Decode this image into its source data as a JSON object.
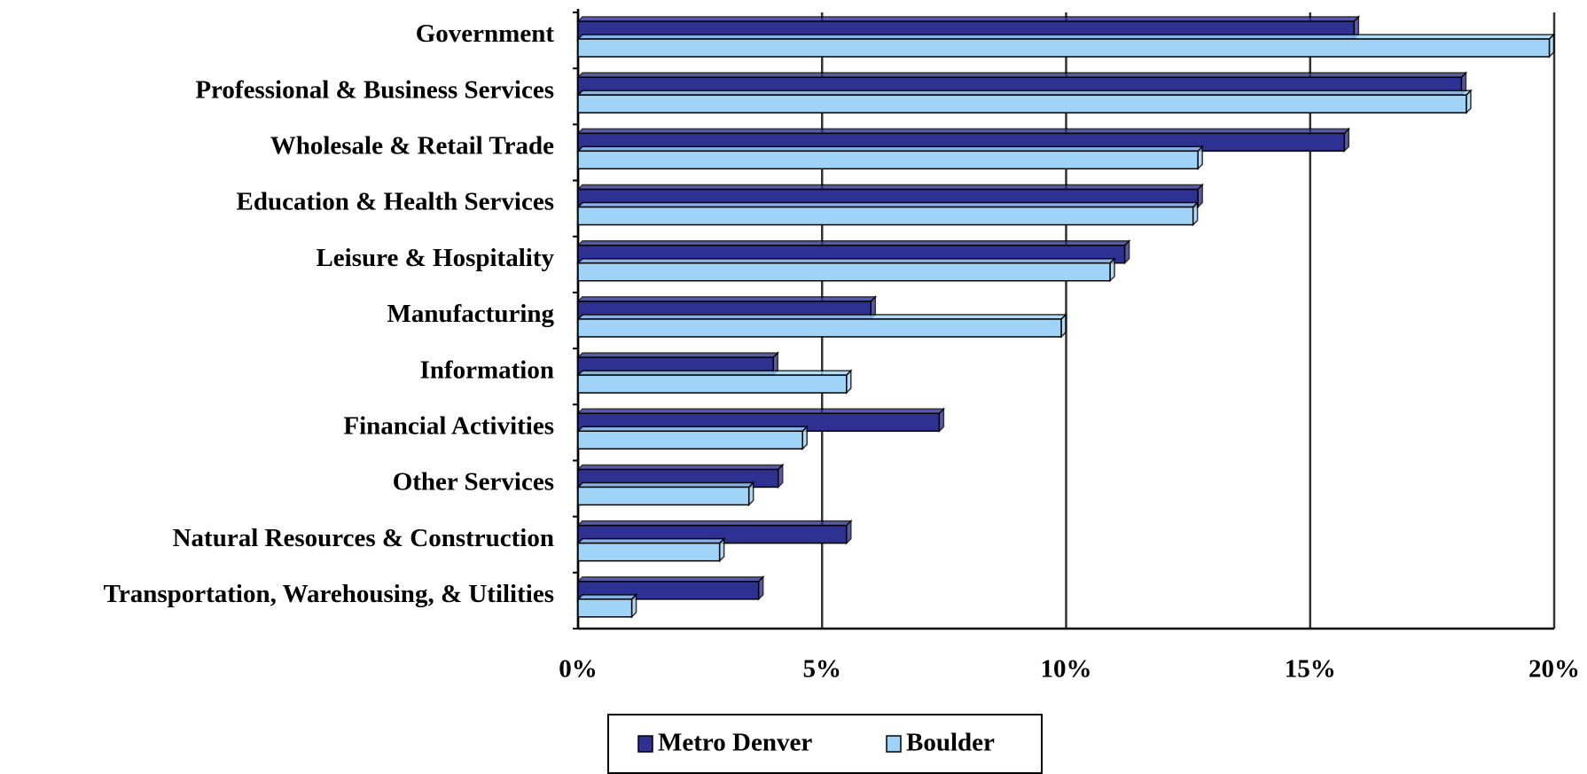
{
  "chart_data": {
    "type": "bar",
    "orientation": "horizontal",
    "categories": [
      "Government",
      "Professional & Business Services",
      "Wholesale & Retail Trade",
      "Education & Health Services",
      "Leisure & Hospitality",
      "Manufacturing",
      "Information",
      "Financial Activities",
      "Other Services",
      "Natural Resources & Construction",
      "Transportation, Warehousing, & Utilities"
    ],
    "series": [
      {
        "name": "Metro Denver",
        "color": "#2e3192",
        "values": [
          15.9,
          18.1,
          15.7,
          12.7,
          11.2,
          6.0,
          4.0,
          7.4,
          4.1,
          5.5,
          3.7
        ]
      },
      {
        "name": "Boulder",
        "color": "#9fd3f7",
        "values": [
          19.9,
          18.2,
          12.7,
          12.6,
          10.9,
          9.9,
          5.5,
          4.6,
          3.5,
          2.9,
          1.1
        ]
      }
    ],
    "xlim": [
      0,
      20
    ],
    "xticks": [
      {
        "value": 0,
        "label": "0%"
      },
      {
        "value": 5,
        "label": "5%"
      },
      {
        "value": 10,
        "label": "10%"
      },
      {
        "value": 15,
        "label": "15%"
      },
      {
        "value": 20,
        "label": "20%"
      }
    ],
    "grid": true,
    "legend": "bottom"
  }
}
